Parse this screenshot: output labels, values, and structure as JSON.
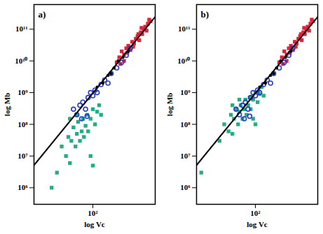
{
  "chart_data": [
    {
      "type": "scatter",
      "title": "a)",
      "x_label": "log Vc",
      "y_label": "log Mb",
      "log": true,
      "xlim": [
        27,
        400
      ],
      "ylim": [
        300000,
        600000000000
      ],
      "xticks": [
        {
          "value": 100,
          "label": "10²"
        }
      ],
      "yticks": [
        {
          "value": 1000000,
          "label": "10⁶"
        },
        {
          "value": 10000000,
          "label": "10⁷"
        },
        {
          "value": 100000000,
          "label": "10⁸"
        },
        {
          "value": 1000000000,
          "label": "10⁹"
        },
        {
          "value": 10000000000,
          "label": "10¹⁰"
        },
        {
          "value": 100000000000,
          "label": "10¹¹"
        }
      ],
      "series": [
        {
          "type": "scatter",
          "marker": "square",
          "color": "#e3203c",
          "x": [
            180,
            190,
            200,
            210,
            220,
            230,
            240,
            250,
            260,
            270,
            280,
            290,
            300,
            310,
            320,
            330,
            340,
            350,
            360,
            200,
            215,
            245,
            275,
            295,
            170,
            185
          ],
          "y": [
            13000000000.0,
            20000000000.0,
            16000000000.0,
            25000000000.0,
            30000000000.0,
            22000000000.0,
            40000000000.0,
            35000000000.0,
            50000000000.0,
            60000000000.0,
            45000000000.0,
            80000000000.0,
            70000000000.0,
            100000000000.0,
            120000000000.0,
            90000000000.0,
            150000000000.0,
            200000000000.0,
            180000000000.0,
            10000000000.0,
            18000000000.0,
            28000000000.0,
            70000000000.0,
            110000000000.0,
            9000000000.0,
            8000000000.0
          ]
        },
        {
          "type": "scatter",
          "marker": "square",
          "color": "#1fae86",
          "x": [
            40,
            45,
            50,
            55,
            58,
            60,
            62,
            65,
            68,
            70,
            72,
            75,
            78,
            80,
            82,
            85,
            88,
            90,
            95,
            100,
            105,
            110,
            115,
            120,
            60,
            70,
            95,
            100
          ],
          "y": [
            1000000.0,
            3000000.0,
            20000000.0,
            10000000.0,
            40000000.0,
            6000000.0,
            30000000.0,
            80000000.0,
            20000000.0,
            50000000.0,
            120000000.0,
            30000000.0,
            60000000.0,
            150000000.0,
            40000000.0,
            90000000.0,
            200000000.0,
            60000000.0,
            150000000.0,
            300000000.0,
            100000000.0,
            250000000.0,
            400000000.0,
            200000000.0,
            150000000.0,
            200000000.0,
            10000000.0,
            5000000.0
          ]
        },
        {
          "type": "scatter",
          "marker": "circle",
          "color": "#2a3cc4",
          "x": [
            65,
            70,
            75,
            80,
            85,
            90,
            95,
            100,
            105,
            110,
            120,
            130,
            140,
            150,
            170,
            190,
            210,
            230,
            78,
            88
          ],
          "y": [
            300000000.0,
            200000000.0,
            400000000.0,
            500000000.0,
            300000000.0,
            700000000.0,
            1000000000.0,
            800000000.0,
            1200000000.0,
            1000000000.0,
            1800000000.0,
            2500000000.0,
            2000000000.0,
            4000000000.0,
            6000000000.0,
            9000000000.0,
            15000000000.0,
            25000000000.0,
            150000000.0,
            180000000.0
          ]
        },
        {
          "type": "scatter",
          "marker": "dot",
          "color": "#000000",
          "x": [
            110,
            125,
            140,
            160,
            175,
            195,
            220,
            150
          ],
          "y": [
            1500000000.0,
            2000000000.0,
            3500000000.0,
            6000000000.0,
            10000000000.0,
            13000000000.0,
            20000000000.0,
            4000000000.0
          ]
        },
        {
          "type": "line",
          "color": "#000000",
          "x": [
            27,
            400
          ],
          "y": [
            5130000,
            245000000000
          ]
        }
      ]
    },
    {
      "type": "scatter",
      "title": "b)",
      "x_label": "log Vc",
      "y_label": "log Mb",
      "log": true,
      "xlim": [
        27,
        400
      ],
      "ylim": [
        300000,
        600000000000
      ],
      "xticks": [
        {
          "value": 100,
          "label": "10²"
        }
      ],
      "yticks": [
        {
          "value": 1000000,
          "label": "10⁶"
        },
        {
          "value": 10000000,
          "label": "10⁷"
        },
        {
          "value": 100000000,
          "label": "10⁸"
        },
        {
          "value": 1000000000,
          "label": "10⁹"
        },
        {
          "value": 10000000000,
          "label": "10¹⁰"
        },
        {
          "value": 100000000000,
          "label": "10¹¹"
        }
      ],
      "series": [
        {
          "type": "scatter",
          "marker": "square",
          "color": "#e3203c",
          "x": [
            180,
            190,
            200,
            210,
            220,
            230,
            240,
            250,
            260,
            270,
            280,
            290,
            300,
            310,
            320,
            330,
            340,
            350,
            360,
            200,
            215,
            245,
            275,
            295,
            170,
            185
          ],
          "y": [
            13000000000.0,
            20000000000.0,
            16000000000.0,
            25000000000.0,
            30000000000.0,
            22000000000.0,
            40000000000.0,
            35000000000.0,
            50000000000.0,
            60000000000.0,
            45000000000.0,
            80000000000.0,
            70000000000.0,
            100000000000.0,
            120000000000.0,
            90000000000.0,
            150000000000.0,
            200000000000.0,
            180000000000.0,
            10000000000.0,
            18000000000.0,
            28000000000.0,
            70000000000.0,
            110000000000.0,
            9000000000.0,
            8000000000.0
          ]
        },
        {
          "type": "scatter",
          "marker": "square",
          "color": "#1fae86",
          "x": [
            30,
            45,
            50,
            55,
            58,
            60,
            62,
            65,
            68,
            70,
            72,
            75,
            78,
            80,
            82,
            85,
            88,
            90,
            95,
            100,
            105,
            110,
            115,
            120,
            60,
            70,
            95,
            100
          ],
          "y": [
            3000000.0,
            30000000.0,
            100000000.0,
            60000000.0,
            200000000.0,
            50000000.0,
            150000000.0,
            300000000.0,
            100000000.0,
            250000000.0,
            400000000.0,
            150000000.0,
            300000000.0,
            600000000.0,
            200000000.0,
            400000000.0,
            700000000.0,
            300000000.0,
            600000000.0,
            1000000000.0,
            500000000.0,
            900000000.0,
            1500000000.0,
            800000000.0,
            400000000.0,
            600000000.0,
            150000000.0,
            100000000.0
          ]
        },
        {
          "type": "scatter",
          "marker": "circle",
          "color": "#2a3cc4",
          "x": [
            65,
            70,
            75,
            80,
            85,
            90,
            95,
            100,
            105,
            110,
            120,
            130,
            140,
            150,
            170,
            190,
            210,
            230,
            78,
            88
          ],
          "y": [
            300000000.0,
            200000000.0,
            400000000.0,
            500000000.0,
            300000000.0,
            700000000.0,
            1000000000.0,
            800000000.0,
            1200000000.0,
            1000000000.0,
            1800000000.0,
            2500000000.0,
            2000000000.0,
            4000000000.0,
            6000000000.0,
            9000000000.0,
            15000000000.0,
            25000000000.0,
            150000000.0,
            180000000.0
          ]
        },
        {
          "type": "scatter",
          "marker": "dot",
          "color": "#000000",
          "x": [
            110,
            125,
            140,
            160,
            175,
            195,
            220,
            150
          ],
          "y": [
            1500000000.0,
            2000000000.0,
            3500000000.0,
            6000000000.0,
            10000000000.0,
            13000000000.0,
            20000000000.0,
            4000000000.0
          ]
        },
        {
          "type": "line",
          "color": "#000000",
          "x": [
            27,
            400
          ],
          "y": [
            5130000,
            245000000000
          ]
        }
      ]
    }
  ]
}
